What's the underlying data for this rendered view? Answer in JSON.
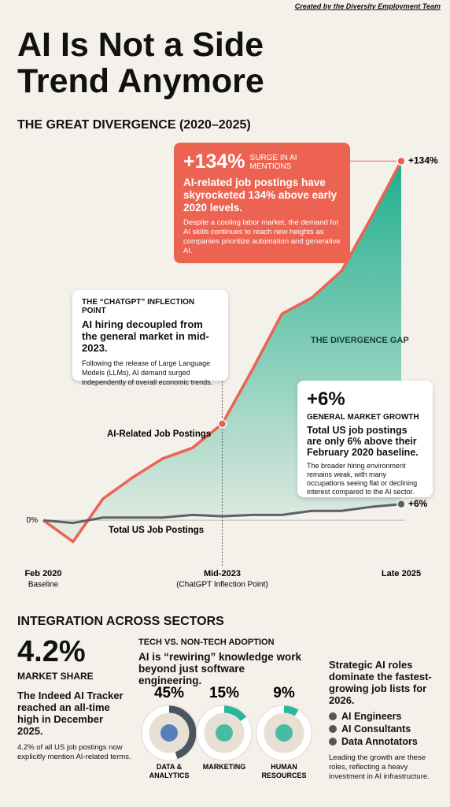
{
  "header": {
    "credit": "Created by the Diversity Employment Team",
    "title": "AI Is Not a Side Trend Anymore"
  },
  "chart_data": {
    "type": "line",
    "title": "THE GREAT DIVERGENCE (2020–2025)",
    "categories": [
      "Feb 2020",
      null,
      null,
      null,
      null,
      null,
      "Mid-2023",
      null,
      null,
      null,
      null,
      null,
      "Late 2025"
    ],
    "category_notes": [
      "Baseline",
      null,
      null,
      null,
      null,
      null,
      "(ChatGPT Inflection Point)",
      null,
      null,
      null,
      null,
      null,
      null
    ],
    "series": [
      {
        "name": "AI-Related Job Postings",
        "color": "#ec6352",
        "values": [
          0,
          -8,
          8,
          16,
          23,
          27,
          36,
          56,
          77,
          83,
          93,
          113,
          134
        ],
        "value_labels": [
          null,
          null,
          null,
          null,
          null,
          null,
          null,
          null,
          null,
          null,
          null,
          null,
          "+134%"
        ]
      },
      {
        "name": "Total US Job Postings",
        "color": "#5b6168",
        "values": [
          0,
          -1,
          1,
          1,
          1,
          2,
          1.5,
          2,
          2,
          3.5,
          3.5,
          5,
          6
        ],
        "value_labels": [
          null,
          null,
          null,
          null,
          null,
          null,
          null,
          null,
          null,
          null,
          null,
          null,
          "+6%"
        ]
      }
    ],
    "ylim": [
      -12,
      140
    ],
    "yticks": [
      {
        "value": 0,
        "label": "0%"
      }
    ],
    "gap_color": "#1fae8c",
    "gap_label": "THE DIVERGENCE GAP"
  },
  "callouts": {
    "surge": {
      "stat": "+134%",
      "tag": "SURGE IN AI MENTIONS",
      "headline": "AI-related job postings have skyrocketed 134% above early 2020 levels.",
      "body": "Despite a cooling labor market, the demand for AI skills continues to reach new heights as companies prioritize automation and generative AI."
    },
    "inflection": {
      "tag": "THE “CHATGPT” INFLECTION POINT",
      "headline": "AI hiring decoupled from the general market in mid-2023.",
      "body": "Following the release of Large Language Models (LLMs), AI demand surged independently of overall economic trends."
    },
    "market": {
      "stat": "+6%",
      "tag": "GENERAL MARKET GROWTH",
      "headline": "Total US job postings are only 6% above their February 2020 baseline.",
      "body": "The broader hiring environment remains weak, with many occupations seeing flat or declining interest compared to the AI sector."
    }
  },
  "sectors": {
    "title": "INTEGRATION ACROSS SECTORS",
    "share": {
      "stat": "4.2%",
      "label": "MARKET SHARE",
      "headline": "The Indeed AI Tracker reached an all-time high in December 2025.",
      "body": "4.2% of all US job postings now explicitly mention AI-related terms."
    },
    "adoption": {
      "tag": "TECH VS. NON-TECH ADOPTION",
      "headline": "AI is “rewiring” knowledge work beyond just software engineering.",
      "items": [
        {
          "value": 45,
          "value_label": "45%",
          "label": "DATA & ANALYTICS",
          "color": "#4a5560"
        },
        {
          "value": 15,
          "value_label": "15%",
          "label": "MARKETING",
          "color": "#2bb59a"
        },
        {
          "value": 9,
          "value_label": "9%",
          "label": "HUMAN RESOURCES",
          "color": "#2bb59a"
        }
      ]
    },
    "roles": {
      "headline": "Strategic AI roles dominate the fastest-growing job lists for 2026.",
      "items": [
        "AI Engineers",
        "AI Consultants",
        "Data Annotators"
      ],
      "footer": "Leading the growth are these roles, reflecting a heavy investment in AI infrastructure."
    }
  }
}
